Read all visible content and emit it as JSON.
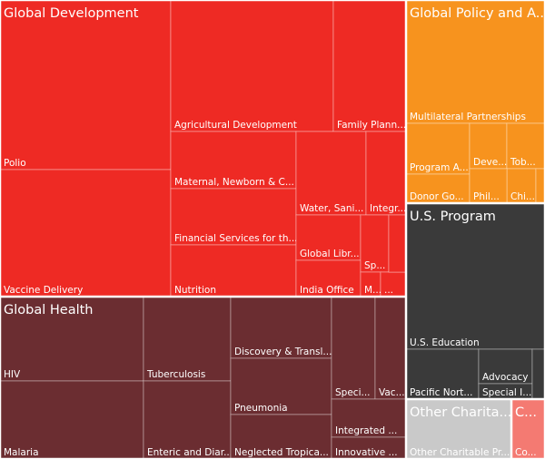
{
  "chart_data": {
    "type": "treemap",
    "colors": {
      "Global Development": "#ee2a24",
      "Global Policy and A...": "#f7931e",
      "U.S. Program": "#3a3a3a",
      "Global Health": "#6b2d31",
      "Other Charita...": "#c9c9c9",
      "C...": "#f47a72",
      "border": "#ffffff"
    },
    "groups": [
      {
        "name": "Global Development",
        "children": [
          {
            "name": "Polio",
            "label": "Polio"
          },
          {
            "name": "Vaccine Delivery",
            "label": "Vaccine Delivery"
          },
          {
            "name": "Agricultural Development",
            "label": "Agricultural Development"
          },
          {
            "name": "Family Planning",
            "label": "Family Plann..."
          },
          {
            "name": "Maternal, Newborn & C...",
            "label": "Maternal, Newborn & C..."
          },
          {
            "name": "Financial Services for the...",
            "label": "Financial Services for th..."
          },
          {
            "name": "Nutrition",
            "label": "Nutrition"
          },
          {
            "name": "Water, Sanitation",
            "label": "Water, Sani..."
          },
          {
            "name": "Integr...",
            "label": "Integr..."
          },
          {
            "name": "Global Libr...",
            "label": "Global Libr..."
          },
          {
            "name": "India Office",
            "label": "India Office"
          },
          {
            "name": "Sp...",
            "label": "Sp..."
          },
          {
            "name": "M...",
            "label": "M..."
          },
          {
            "name": "small-a",
            "label": "..."
          },
          {
            "name": "small-b",
            "label": ""
          },
          {
            "name": "small-c",
            "label": ""
          }
        ]
      },
      {
        "name": "Global Policy and A...",
        "children": [
          {
            "name": "Multilateral Partnerships",
            "label": "Multilateral Partnerships"
          },
          {
            "name": "Program A...",
            "label": "Program A..."
          },
          {
            "name": "Donor Go...",
            "label": "Donor Go..."
          },
          {
            "name": "Deve...",
            "label": "Deve..."
          },
          {
            "name": "Tob...",
            "label": "Tob..."
          },
          {
            "name": "Chi...",
            "label": "Chi..."
          },
          {
            "name": "Phil...",
            "label": "Phil..."
          },
          {
            "name": "small-d",
            "label": ""
          }
        ]
      },
      {
        "name": "U.S. Program",
        "children": [
          {
            "name": "U.S. Education",
            "label": "U.S. Education"
          },
          {
            "name": "Pacific Nort...",
            "label": "Pacific Nort..."
          },
          {
            "name": "Advocacy",
            "label": "Advocacy"
          },
          {
            "name": "Special I...",
            "label": "Special I..."
          },
          {
            "name": "small-e",
            "label": ""
          }
        ]
      },
      {
        "name": "Global Health",
        "children": [
          {
            "name": "HIV",
            "label": "HIV"
          },
          {
            "name": "Malaria",
            "label": "Malaria"
          },
          {
            "name": "Tuberculosis",
            "label": "Tuberculosis"
          },
          {
            "name": "Enteric and Diarrheal",
            "label": "Enteric and Diar..."
          },
          {
            "name": "Discovery & Translational",
            "label": "Discovery & Transl..."
          },
          {
            "name": "Pneumonia",
            "label": "Pneumonia"
          },
          {
            "name": "Neglected Tropical",
            "label": "Neglected Tropica..."
          },
          {
            "name": "Speci...",
            "label": "Speci..."
          },
          {
            "name": "Vac...",
            "label": "Vac..."
          },
          {
            "name": "Integrated",
            "label": "Integrated ..."
          },
          {
            "name": "Innovative",
            "label": "Innovative ..."
          }
        ]
      },
      {
        "name": "Other Charita...",
        "children": [
          {
            "name": "Other Charitable Pr...",
            "label": "Other Charitable Pr..."
          }
        ]
      },
      {
        "name": "C...",
        "children": [
          {
            "name": "Co...",
            "label": "Co..."
          }
        ]
      }
    ]
  }
}
